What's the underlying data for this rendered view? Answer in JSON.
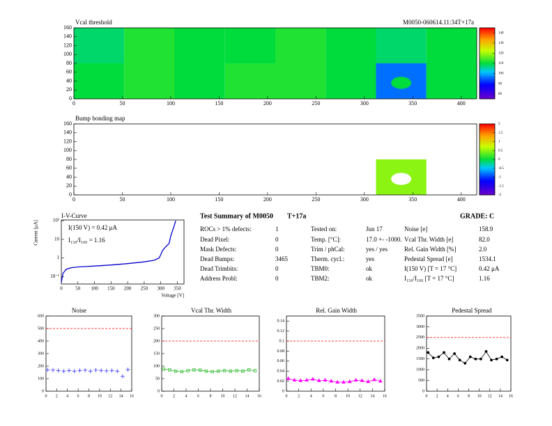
{
  "chart_data": [
    {
      "type": "heatmap",
      "title": "Vcal threshold",
      "subtitle": "M0050-060614.11:34T+17a",
      "xbins": [
        0,
        52,
        104,
        156,
        208,
        260,
        312,
        364,
        416
      ],
      "ybins": [
        0,
        80,
        160
      ],
      "values": [
        [
          110,
          112,
          110,
          112,
          112,
          110,
          96,
          110
        ],
        [
          108,
          112,
          110,
          110,
          112,
          110,
          108,
          110
        ]
      ],
      "xlim": [
        0,
        416
      ],
      "xticks": [
        0,
        50,
        100,
        150,
        200,
        250,
        300,
        350,
        400
      ],
      "ylim": [
        0,
        160
      ],
      "yticks": [
        0,
        20,
        40,
        60,
        80,
        100,
        120,
        140,
        160
      ],
      "zlim": [
        75,
        145
      ],
      "zticks": [
        80,
        90,
        100,
        110,
        120,
        130,
        140
      ]
    },
    {
      "type": "heatmap",
      "title": "Bump bonding map",
      "xbins": [
        0,
        52,
        104,
        156,
        208,
        260,
        312,
        364,
        416
      ],
      "ybins": [
        0,
        80,
        160
      ],
      "values": [
        [
          null,
          null,
          null,
          null,
          null,
          null,
          0.5,
          null
        ],
        [
          null,
          null,
          null,
          null,
          null,
          null,
          null,
          null
        ]
      ],
      "xlim": [
        0,
        416
      ],
      "xticks": [
        0,
        50,
        100,
        150,
        200,
        250,
        300,
        350,
        400
      ],
      "ylim": [
        0,
        160
      ],
      "yticks": [
        0,
        20,
        40,
        60,
        80,
        100,
        120,
        140,
        160
      ],
      "zlim": [
        -2,
        2
      ],
      "zticks": [
        -2,
        -1.5,
        -1,
        -0.5,
        0,
        0.5,
        1,
        1.5,
        2
      ]
    },
    {
      "type": "line",
      "title": "I-V-Curve",
      "x_label": "Voltage [V]",
      "y_label": "Current [μA]",
      "log_y": true,
      "annotations": [
        "I(150 V) = 0.42 μA",
        "I₁₅₀/I₁₀₀ = 1.16"
      ],
      "x": [
        0,
        5,
        15,
        30,
        50,
        100,
        150,
        200,
        250,
        280,
        295,
        300,
        305,
        315,
        325,
        330,
        340,
        345
      ],
      "series": [
        {
          "color": "#0000cc",
          "values": [
            0.05,
            0.15,
            0.25,
            0.3,
            0.33,
            0.37,
            0.42,
            0.5,
            0.62,
            0.75,
            1.0,
            1.5,
            2.5,
            4,
            6,
            15,
            50,
            100
          ]
        }
      ],
      "xlim": [
        0,
        370
      ],
      "xticks": [
        0,
        50,
        100,
        150,
        200,
        250,
        300,
        350
      ],
      "ylim": [
        0.04,
        110
      ],
      "yticks": [
        {
          "value": 0.1,
          "label": "10⁻¹"
        },
        1,
        10,
        {
          "value": 100,
          "label": "10²"
        }
      ]
    },
    {
      "type": "scatter",
      "title": "Noise",
      "marker": "cross",
      "threshold": 500,
      "threshold_color": "#ff0000",
      "x": [
        0,
        1,
        2,
        3,
        4,
        5,
        6,
        7,
        8,
        9,
        10,
        11,
        12,
        13,
        14,
        15
      ],
      "series": [
        {
          "color": "#3232ff",
          "values": [
            170,
            168,
            165,
            160,
            165,
            160,
            165,
            168,
            160,
            168,
            165,
            162,
            165,
            160,
            118,
            172
          ]
        }
      ],
      "xlim": [
        0,
        16
      ],
      "xticks": [
        0,
        2,
        4,
        6,
        8,
        10,
        12,
        14,
        16
      ],
      "ylim": [
        0,
        600
      ],
      "yticks": [
        0,
        100,
        200,
        300,
        400,
        500,
        600
      ]
    },
    {
      "type": "scatter",
      "title": "Vcal Thr. Width",
      "marker": "square",
      "threshold": 200,
      "threshold_color": "#ff0000",
      "x": [
        0,
        1,
        2,
        3,
        4,
        5,
        6,
        7,
        8,
        9,
        10,
        11,
        12,
        13,
        14,
        15
      ],
      "series": [
        {
          "color": "#33bb33",
          "values": [
            88,
            85,
            80,
            78,
            82,
            85,
            84,
            80,
            78,
            80,
            82,
            80,
            82,
            80,
            85,
            82
          ]
        }
      ],
      "xlim": [
        0,
        16
      ],
      "xticks": [
        0,
        2,
        4,
        6,
        8,
        10,
        12,
        14,
        16
      ],
      "ylim": [
        0,
        300
      ],
      "yticks": [
        0,
        50,
        100,
        150,
        200,
        250,
        300
      ]
    },
    {
      "type": "scatter",
      "title": "Rel. Gain Width",
      "marker": "triangle",
      "threshold": 0.1,
      "threshold_color": "#ff0000",
      "x": [
        0,
        1,
        2,
        3,
        4,
        5,
        6,
        7,
        8,
        9,
        10,
        11,
        12,
        13,
        14,
        15
      ],
      "series": [
        {
          "color": "#ff00ff",
          "values": [
            0.025,
            0.022,
            0.021,
            0.022,
            0.024,
            0.021,
            0.022,
            0.02,
            0.018,
            0.018,
            0.019,
            0.022,
            0.021,
            0.019,
            0.023,
            0.02
          ]
        }
      ],
      "xlim": [
        0,
        16
      ],
      "xticks": [
        0,
        2,
        4,
        6,
        8,
        10,
        12,
        14,
        16
      ],
      "ylim": [
        0,
        0.15
      ],
      "yticks": [
        0,
        0.02,
        0.04,
        0.06,
        0.08,
        0.1,
        0.12,
        0.14
      ]
    },
    {
      "type": "scatter",
      "title": "Pedestal Spread",
      "marker": "dot",
      "threshold": 2500,
      "threshold_color": "#ff0000",
      "x": [
        0,
        1,
        2,
        3,
        4,
        5,
        6,
        7,
        8,
        9,
        10,
        11,
        12,
        13,
        14,
        15
      ],
      "series": [
        {
          "color": "#000000",
          "values": [
            1800,
            1550,
            1600,
            1800,
            1500,
            1750,
            1450,
            1300,
            1600,
            1500,
            1500,
            1850,
            1450,
            1500,
            1600,
            1450
          ]
        }
      ],
      "xlim": [
        0,
        16
      ],
      "xticks": [
        0,
        2,
        4,
        6,
        8,
        10,
        12,
        14,
        16
      ],
      "ylim": [
        0,
        3500
      ],
      "yticks": [
        0,
        500,
        1000,
        1500,
        2000,
        2500,
        3000,
        3500
      ]
    }
  ],
  "summary": {
    "title": "Test Summary of M0050",
    "tag": "T+17a",
    "grade": "GRADE:  C",
    "rows": [
      [
        "ROCs > 1% defects:",
        "1",
        "Tested on:",
        "Jun 17",
        "Noise [e]",
        "158.9"
      ],
      [
        "Dead Pixel:",
        "0",
        "Temp. [°C]:",
        "17.0 +- -1000.",
        "Vcal Thr. Width [e]",
        "82.0"
      ],
      [
        "Mask Defects:",
        "0",
        "Trim / phCal:",
        "yes / yes",
        "Rel. Gain Width [%]",
        "2.0"
      ],
      [
        "Dead Bumps:",
        "3465",
        "Therm. cycl.:",
        "yes",
        "Pedestal Spread [e]",
        "1534.1"
      ],
      [
        "Dead Trimbits:",
        "0",
        "TBM0:",
        "ok",
        "I(150 V) [T = 17 °C]",
        "0.42 μA"
      ],
      [
        "Address Probl:",
        "0",
        "TBM2:",
        "ok",
        "I₁₅₀/I₁₀₀   [T = 17 °C]",
        "1.16"
      ]
    ]
  }
}
